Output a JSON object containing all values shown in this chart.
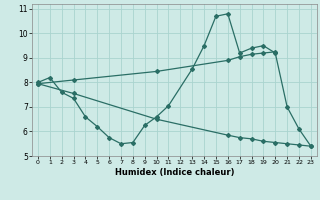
{
  "xlabel": "Humidex (Indice chaleur)",
  "bg_color": "#ceeae6",
  "grid_color": "#aad4cf",
  "line_color": "#2a6e65",
  "xlim": [
    -0.5,
    23.5
  ],
  "ylim": [
    5.0,
    11.2
  ],
  "xticks": [
    0,
    1,
    2,
    3,
    4,
    5,
    6,
    7,
    8,
    9,
    10,
    11,
    12,
    13,
    14,
    15,
    16,
    17,
    18,
    19,
    20,
    21,
    22,
    23
  ],
  "yticks": [
    5,
    6,
    7,
    8,
    9,
    10,
    11
  ],
  "line1_x": [
    0,
    1,
    2,
    3,
    4,
    5,
    6,
    7,
    8,
    9,
    10,
    11,
    13,
    14,
    15,
    16,
    17,
    18,
    19,
    20,
    21,
    22,
    23
  ],
  "line1_y": [
    8.0,
    8.2,
    7.6,
    7.35,
    6.6,
    6.2,
    5.75,
    5.5,
    5.55,
    6.25,
    6.6,
    7.05,
    8.55,
    9.5,
    10.7,
    10.8,
    9.2,
    9.4,
    9.5,
    9.2,
    7.0,
    6.1,
    5.4
  ],
  "line2_x": [
    0,
    3,
    10,
    16,
    17,
    18,
    19,
    20
  ],
  "line2_y": [
    7.95,
    8.1,
    8.45,
    8.9,
    9.05,
    9.15,
    9.2,
    9.25
  ],
  "line3_x": [
    0,
    3,
    10,
    16,
    17,
    18,
    19,
    20,
    21,
    22,
    23
  ],
  "line3_y": [
    7.95,
    7.55,
    6.5,
    5.85,
    5.75,
    5.7,
    5.6,
    5.55,
    5.5,
    5.45,
    5.4
  ]
}
